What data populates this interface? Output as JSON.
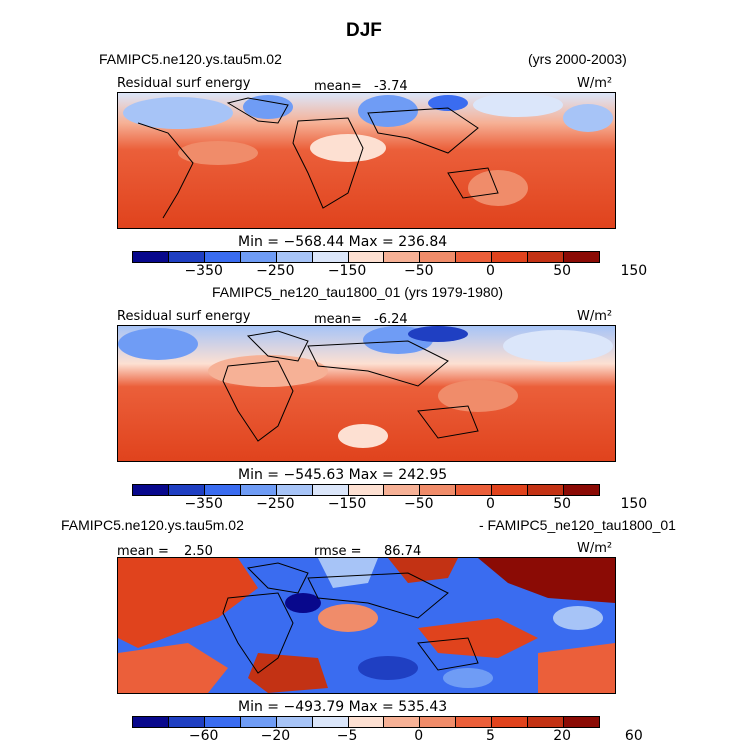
{
  "title": "DJF",
  "panel1": {
    "case_name": "FAMIPC5.ne120.ys.tau5m.02",
    "years": "(yrs 2000-2003)",
    "field": "Residual surf energy",
    "mean_label": "mean=",
    "mean_value": "-3.74",
    "units": "W/m²",
    "min_max": "Min = −568.44 Max = 236.84"
  },
  "panel2": {
    "header": "FAMIPC5_ne120_tau1800_01 (yrs 1979-1980)",
    "field": "Residual surf energy",
    "mean_label": "mean=",
    "mean_value": "-6.24",
    "units": "W/m²",
    "min_max": "Min = −545.63 Max = 242.95"
  },
  "panel3": {
    "case_a": "FAMIPC5.ne120.ys.tau5m.02",
    "case_b": "- FAMIPC5_ne120_tau1800_01",
    "mean_label": "mean =",
    "mean_value": "2.50",
    "rmse_label": "rmse =",
    "rmse_value": "86.74",
    "units": "W/m²",
    "min_max": "Min = −493.79 Max = 535.43"
  },
  "colorbar_abs": {
    "colors": [
      "#08088c",
      "#1f3fc2",
      "#3a6cf0",
      "#6f9cf5",
      "#a7c4f7",
      "#dbe6fa",
      "#fde0d2",
      "#f6b196",
      "#f08c6a",
      "#eb5f3a",
      "#e0431d",
      "#c33214",
      "#8b0b05"
    ],
    "ticks": [
      "−350",
      "−250",
      "−150",
      "−50",
      "0",
      "50",
      "150"
    ]
  },
  "colorbar_diff": {
    "colors": [
      "#08088c",
      "#1f3fc2",
      "#3a6cf0",
      "#6f9cf5",
      "#a7c4f7",
      "#dbe6fa",
      "#fde0d2",
      "#f6b196",
      "#f08c6a",
      "#eb5f3a",
      "#e0431d",
      "#c33214",
      "#8b0b05"
    ],
    "ticks": [
      "−60",
      "−20",
      "−5",
      "0",
      "5",
      "20",
      "60"
    ]
  }
}
